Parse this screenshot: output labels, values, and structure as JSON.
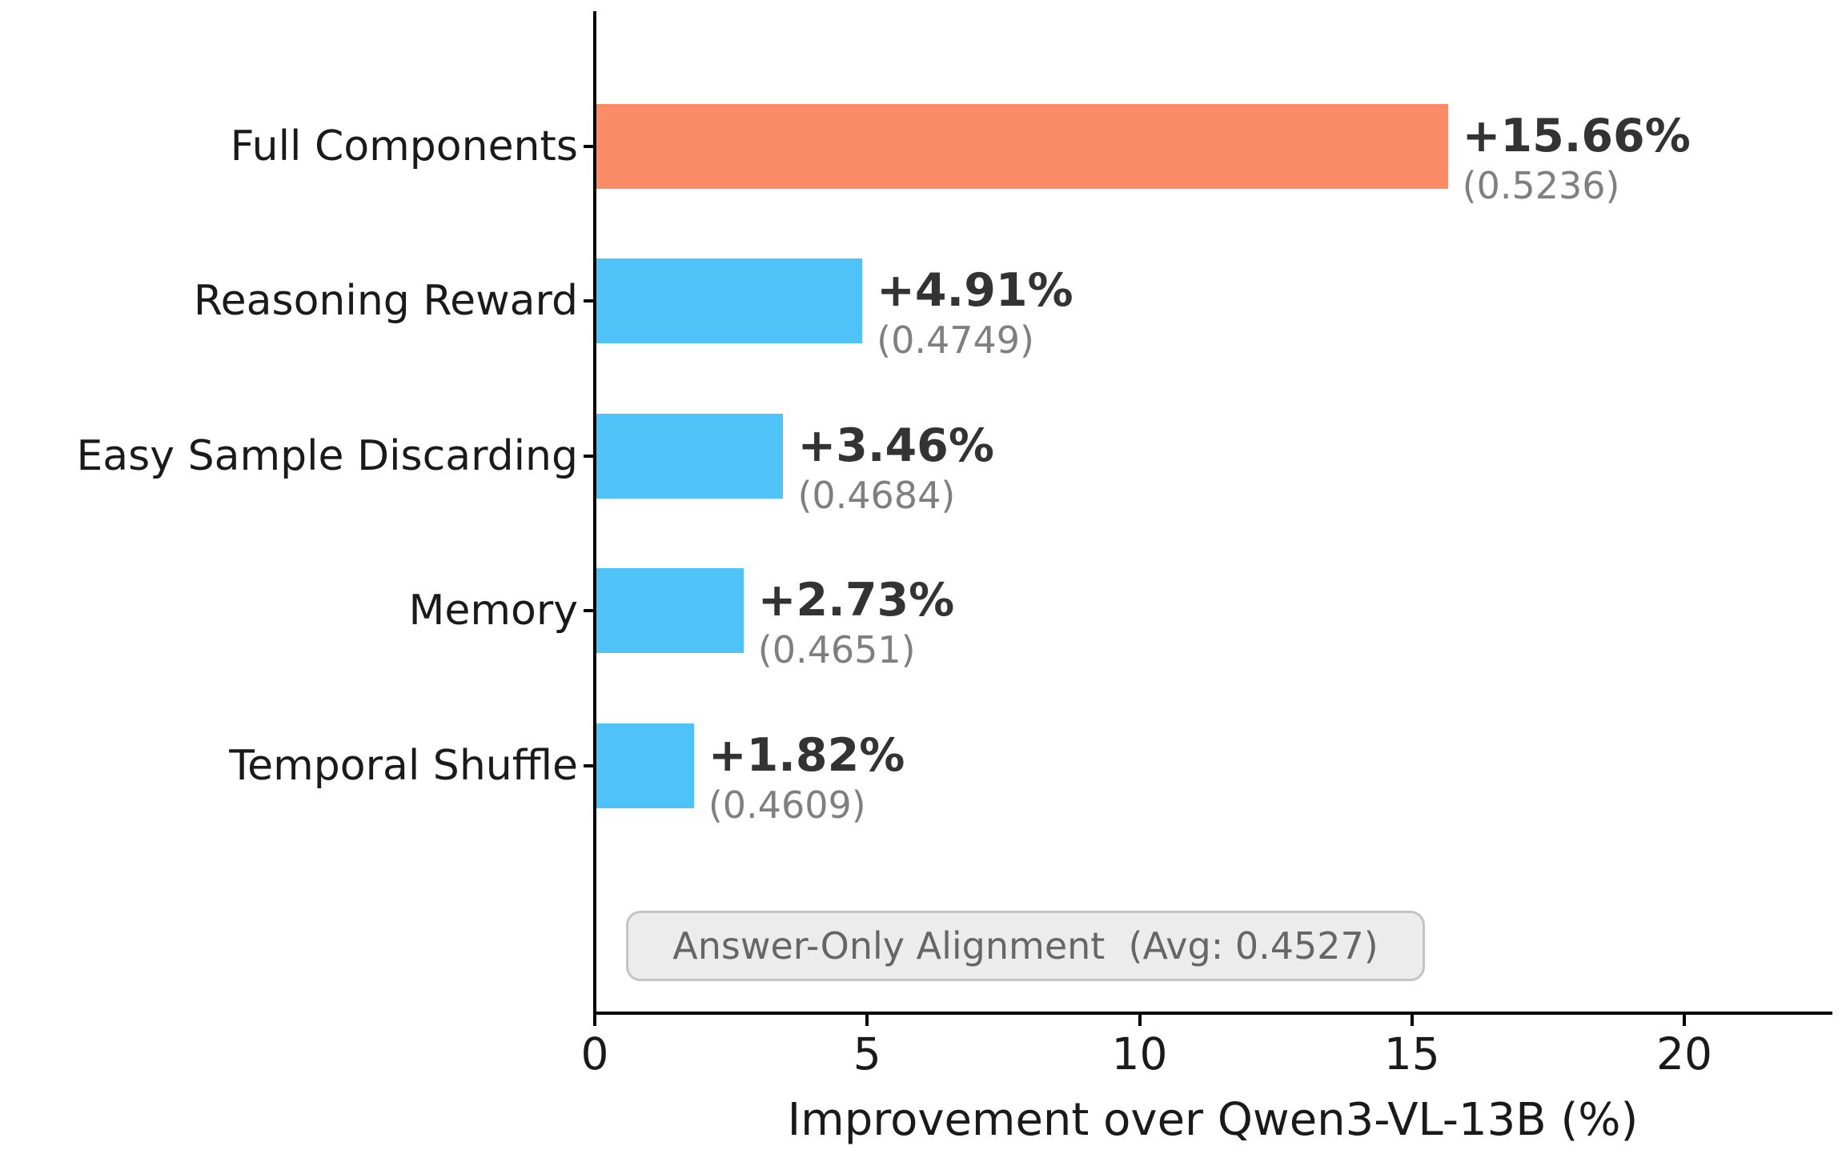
{
  "chart_data": {
    "type": "bar",
    "orientation": "horizontal",
    "title": "",
    "xlabel": "Improvement over Qwen3-VL-13B (%)",
    "ylabel": "",
    "categories": [
      "Full Components",
      "Reasoning Reward",
      "Easy Sample Discarding",
      "Memory",
      "Temporal Shuffle"
    ],
    "values": [
      15.66,
      4.91,
      3.46,
      2.73,
      1.82
    ],
    "value_labels": [
      "+15.66%",
      "+4.91%",
      "+3.46%",
      "+2.73%",
      "+1.82%"
    ],
    "score_labels": [
      "(0.5236)",
      "(0.4749)",
      "(0.4684)",
      "(0.4651)",
      "(0.4609)"
    ],
    "scores": [
      0.5236,
      0.4749,
      0.4684,
      0.4651,
      0.4609
    ],
    "bar_colors": [
      "#FC8C68",
      "#4FC3F7",
      "#4FC3F7",
      "#4FC3F7",
      "#4FC3F7"
    ],
    "highlight_color": "#FC8C68",
    "default_color": "#4FC3F7",
    "xticks": [
      0,
      5,
      10,
      15,
      20
    ],
    "xlim": [
      0,
      22.7
    ],
    "grid": false,
    "legend": false,
    "baseline_annotation": "Answer-Only Alignment  (Avg: 0.4527)",
    "baseline_avg": 0.4527,
    "colors": {
      "value_text": "#333333",
      "score_text": "#7f7f7f",
      "axis_text": "#1a1a1a",
      "annotation_text": "#666666",
      "annotation_bg": "#ECECEC",
      "annotation_border": "#C4C4C4"
    }
  }
}
